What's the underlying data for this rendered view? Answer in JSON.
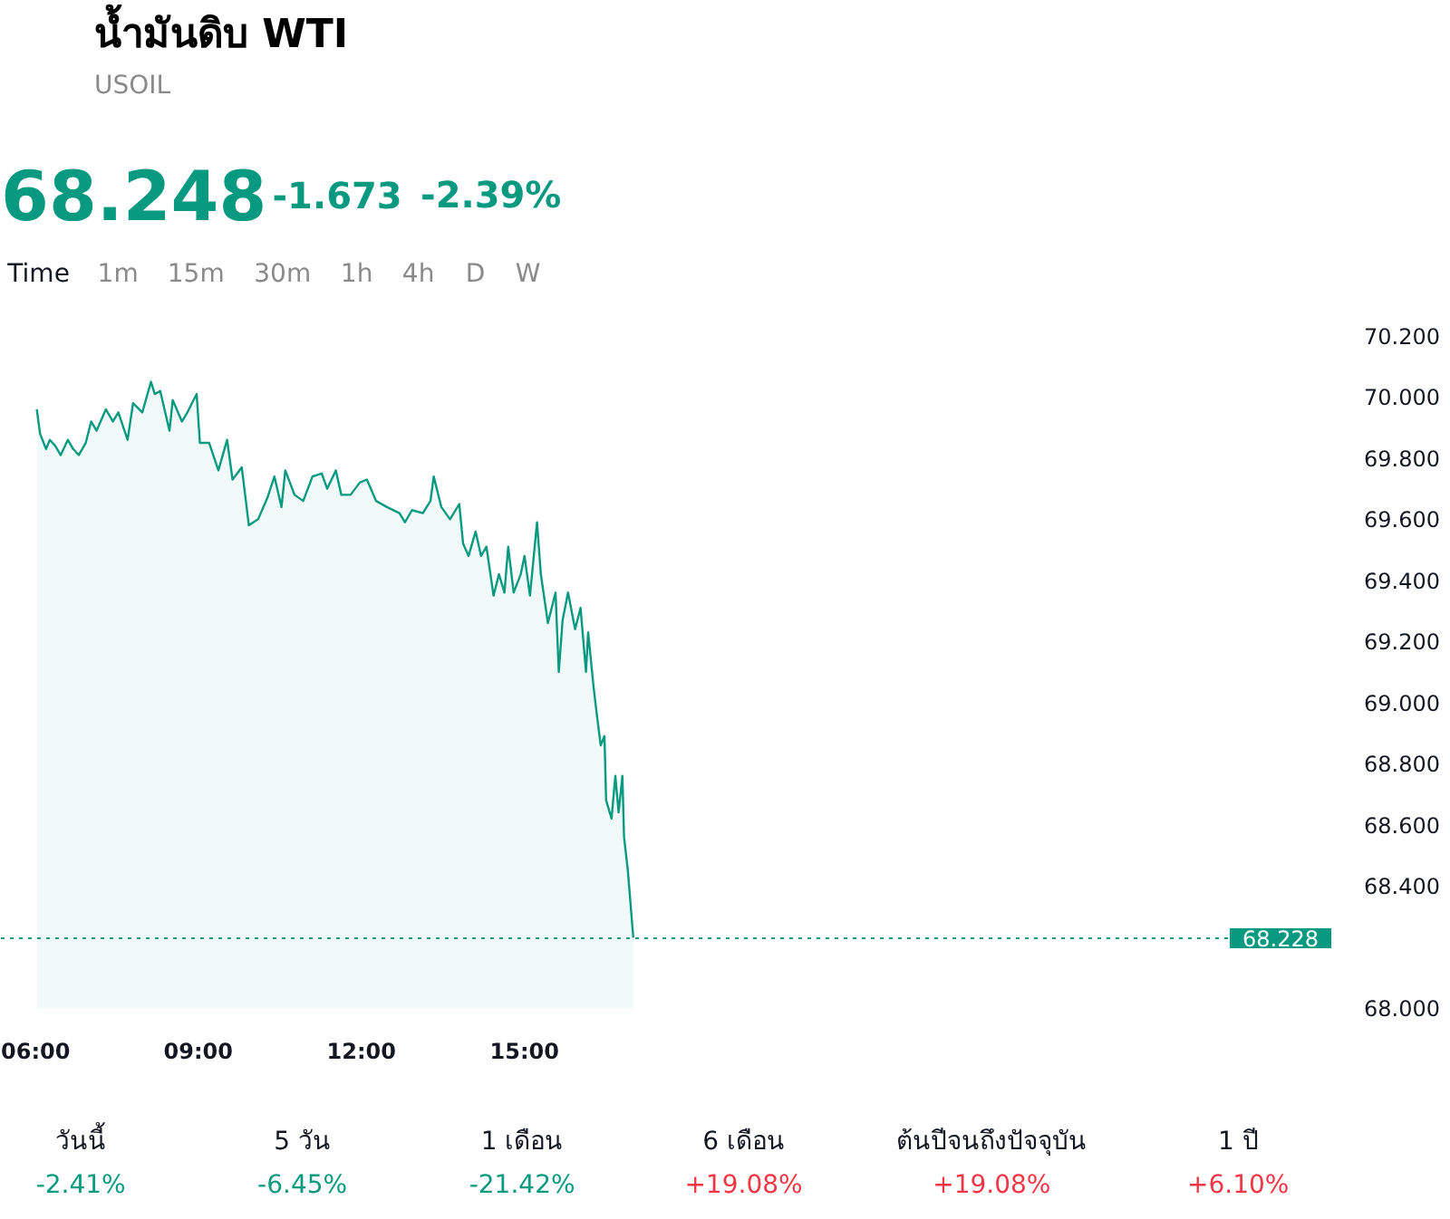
{
  "chart_data": {
    "type": "area",
    "title": "น้ำมันดิบ WTI",
    "subtitle": "USOIL",
    "annotations": [
      "68.248",
      "-1.673",
      "-2.39%",
      "Time",
      "1m",
      "15m",
      "30m",
      "1h",
      "4h",
      "D",
      "W",
      "วันนี้",
      "-2.41%",
      "5 วัน",
      "-6.45%",
      "1 เดือน",
      "-21.42%",
      "6 เดือน",
      "+19.08%",
      "ต้นปีจนถึงปัจจุบัน",
      "+19.08%",
      "1 ปี",
      "+6.10%"
    ],
    "color": "#089981",
    "x": [
      6.03,
      6.09,
      6.2,
      6.27,
      6.37,
      6.47,
      6.6,
      6.7,
      6.8,
      6.93,
      7.03,
      7.13,
      7.3,
      7.43,
      7.53,
      7.7,
      7.8,
      7.97,
      8.13,
      8.2,
      8.3,
      8.47,
      8.53,
      8.7,
      8.8,
      8.97,
      9.03,
      9.2,
      9.37,
      9.53,
      9.63,
      9.8,
      9.93,
      10.1,
      10.27,
      10.4,
      10.53,
      10.6,
      10.77,
      10.93,
      11.1,
      11.27,
      11.37,
      11.53,
      11.63,
      11.8,
      11.97,
      12.1,
      12.27,
      12.47,
      12.7,
      12.8,
      12.93,
      13.13,
      13.27,
      13.33,
      13.47,
      13.63,
      13.8,
      13.87,
      13.97,
      14.1,
      14.2,
      14.3,
      14.43,
      14.53,
      14.63,
      14.7,
      14.8,
      14.93,
      15.0,
      15.1,
      15.23,
      15.3,
      15.43,
      15.57,
      15.63,
      15.7,
      15.8,
      15.93,
      16.03,
      16.13,
      16.17,
      16.27,
      16.33,
      16.4,
      16.47,
      16.5,
      16.6,
      16.67,
      16.73,
      16.8,
      16.83,
      16.9,
      17.0
    ],
    "values": [
      69.96,
      69.88,
      69.83,
      69.86,
      69.84,
      69.81,
      69.86,
      69.83,
      69.81,
      69.85,
      69.92,
      69.89,
      69.96,
      69.92,
      69.95,
      69.86,
      69.98,
      69.95,
      70.05,
      70.01,
      70.02,
      69.89,
      69.99,
      69.92,
      69.95,
      70.01,
      69.85,
      69.85,
      69.76,
      69.86,
      69.73,
      69.77,
      69.58,
      69.6,
      69.67,
      69.74,
      69.64,
      69.76,
      69.68,
      69.66,
      69.74,
      69.75,
      69.7,
      69.76,
      69.68,
      69.68,
      69.72,
      69.73,
      69.66,
      69.64,
      69.62,
      69.59,
      69.63,
      69.62,
      69.66,
      69.74,
      69.64,
      69.6,
      69.65,
      69.52,
      69.48,
      69.56,
      69.48,
      69.51,
      69.35,
      69.42,
      69.36,
      69.51,
      69.36,
      69.42,
      69.48,
      69.35,
      69.59,
      69.42,
      69.26,
      69.36,
      69.1,
      69.27,
      69.36,
      69.24,
      69.31,
      69.1,
      69.23,
      69.05,
      68.96,
      68.86,
      68.89,
      68.68,
      68.62,
      68.76,
      68.64,
      68.76,
      68.56,
      68.45,
      68.23
    ],
    "xlim": [
      5.37,
      29.87
    ],
    "xticks": [
      {
        "value": 6,
        "label": "06:00"
      },
      {
        "value": 9,
        "label": "09:00"
      },
      {
        "value": 12,
        "label": "12:00"
      },
      {
        "value": 15,
        "label": "15:00"
      }
    ],
    "ylim": [
      68.0,
      70.2
    ],
    "yticks": [
      {
        "value": 68.0,
        "label": "68.000"
      },
      {
        "value": 68.4,
        "label": "68.400"
      },
      {
        "value": 68.6,
        "label": "68.600"
      },
      {
        "value": 68.8,
        "label": "68.800"
      },
      {
        "value": 69.0,
        "label": "69.000"
      },
      {
        "value": 69.2,
        "label": "69.200"
      },
      {
        "value": 69.4,
        "label": "69.400"
      },
      {
        "value": 69.6,
        "label": "69.600"
      },
      {
        "value": 69.8,
        "label": "69.800"
      },
      {
        "value": 70.0,
        "label": "70.000"
      },
      {
        "value": 70.2,
        "label": "70.200"
      }
    ],
    "ref_lines": [
      {
        "axis": "y",
        "value": 68.228,
        "label": "68.228",
        "color": "#089981",
        "line_style": "dotted"
      }
    ]
  }
}
